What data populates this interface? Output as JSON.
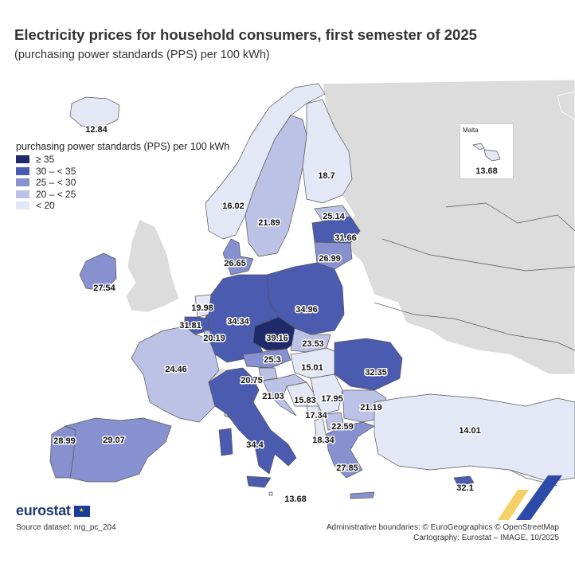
{
  "title": "Electricity prices for household consumers, first semester of 2025",
  "subtitle": "(purchasing power standards (PPS) per 100 kWh)",
  "legend": {
    "title": "purchasing power standards (PPS) per 100 kWh",
    "classes": [
      {
        "label": "≥ 35",
        "color": "#1f2a6b"
      },
      {
        "label": "30 – < 35",
        "color": "#4a5bb0"
      },
      {
        "label": "25 – < 30",
        "color": "#8791cf"
      },
      {
        "label": "20 – < 25",
        "color": "#bcc2e6"
      },
      {
        "label": "< 20",
        "color": "#e4e7f5"
      }
    ]
  },
  "colors": {
    "non_eu": "#dcdcdc",
    "sea": "#ffffff",
    "border": "#555555"
  },
  "countries": [
    {
      "name": "Iceland",
      "value": "12.84"
    },
    {
      "name": "Norway",
      "value": "16.02"
    },
    {
      "name": "Sweden",
      "value": "21.89"
    },
    {
      "name": "Finland",
      "value": "18.7"
    },
    {
      "name": "Estonia",
      "value": "25.14"
    },
    {
      "name": "Latvia",
      "value": "31.66"
    },
    {
      "name": "Lithuania",
      "value": "26.99"
    },
    {
      "name": "Denmark",
      "value": "26.65"
    },
    {
      "name": "Ireland",
      "value": "27.54"
    },
    {
      "name": "Netherlands",
      "value": "19.98"
    },
    {
      "name": "Belgium",
      "value": "31.81"
    },
    {
      "name": "Luxembourg",
      "value": "20.19"
    },
    {
      "name": "Germany",
      "value": "34.34"
    },
    {
      "name": "Poland",
      "value": "34.96"
    },
    {
      "name": "Czechia",
      "value": "39.16"
    },
    {
      "name": "Slovakia",
      "value": "23.53"
    },
    {
      "name": "Austria",
      "value": "25.3"
    },
    {
      "name": "Hungary",
      "value": "15.01"
    },
    {
      "name": "Romania",
      "value": "32.35"
    },
    {
      "name": "France",
      "value": "24.46"
    },
    {
      "name": "Slovenia",
      "value": "20.75"
    },
    {
      "name": "Croatia",
      "value": "21.03"
    },
    {
      "name": "Bosnia and Herzegovina",
      "value": "15.83"
    },
    {
      "name": "Serbia",
      "value": "17.95"
    },
    {
      "name": "Montenegro",
      "value": "17.34"
    },
    {
      "name": "Bulgaria",
      "value": "21.19"
    },
    {
      "name": "North Macedonia",
      "value": "22.59"
    },
    {
      "name": "Albania",
      "value": "18.34"
    },
    {
      "name": "Greece",
      "value": "27.85"
    },
    {
      "name": "Türkiye",
      "value": "14.01"
    },
    {
      "name": "Cyprus",
      "value": "32.1"
    },
    {
      "name": "Portugal",
      "value": "28.99"
    },
    {
      "name": "Spain",
      "value": "29.07"
    },
    {
      "name": "Italy",
      "value": "34.4"
    },
    {
      "name": "Malta (mainland label)",
      "value": "13.68"
    }
  ],
  "inset": {
    "name": "Malta",
    "value": "13.68"
  },
  "logo": "eurostat",
  "source": "Source dataset: nrg_pc_204",
  "attribution": {
    "line1": "Administrative boundaries: © EuroGeographics © OpenStreetMap",
    "line2": "Cartography: Eurostat – IMAGE, 10/2025"
  }
}
